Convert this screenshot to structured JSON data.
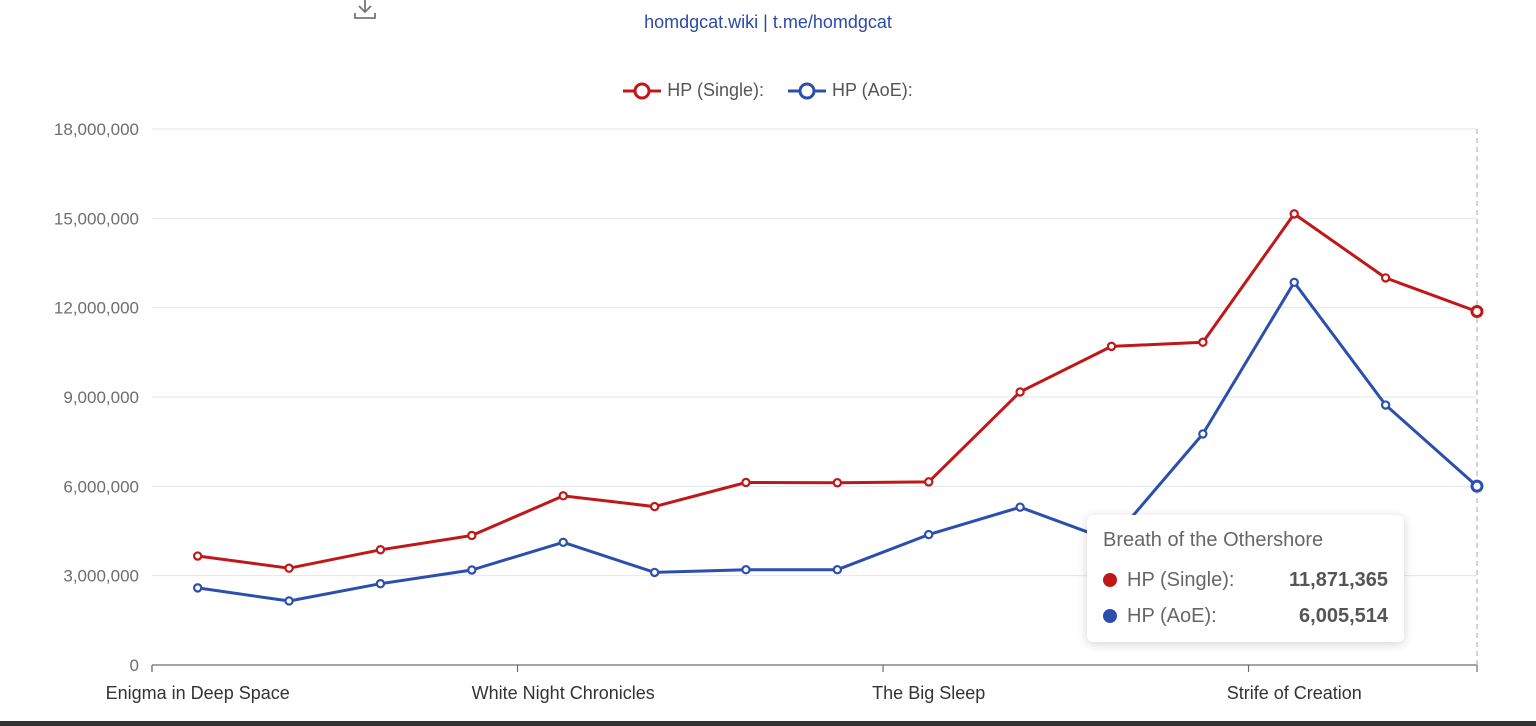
{
  "header": {
    "subtitle": "homdgcat.wiki | t.me/homdgcat",
    "download_icon": "download-icon"
  },
  "chart_data": {
    "type": "line",
    "categories": [
      "Enigma in Deep Space",
      "",
      "",
      "",
      "White Night Chronicles",
      "",
      "",
      "",
      "The Big Sleep",
      "",
      "",
      "",
      "Strife of Creation",
      "",
      ""
    ],
    "series": [
      {
        "name": "HP (Single):",
        "color": "#c01818",
        "values": [
          3660000,
          3250000,
          3870000,
          4350000,
          5680000,
          5320000,
          6130000,
          6120000,
          6150000,
          9170000,
          10700000,
          10840000,
          15150000,
          13000000,
          11871365
        ]
      },
      {
        "name": "HP (AoE):",
        "color": "#2c4fae",
        "values": [
          2590000,
          2150000,
          2730000,
          3190000,
          4120000,
          3110000,
          3200000,
          3200000,
          4380000,
          5300000,
          4170000,
          7760000,
          12850000,
          8730000,
          6005514
        ]
      }
    ],
    "ylim": [
      0,
      18000000
    ],
    "yticks": [
      "0",
      "3,000,000",
      "6,000,000",
      "9,000,000",
      "12,000,000",
      "15,000,000",
      "18,000,000"
    ],
    "grid": true,
    "legend_position": "top-center"
  },
  "tooltip": {
    "title": "Breath of the Othershore",
    "rows": [
      {
        "name": "HP (Single):",
        "value": "11,871,365",
        "color": "#c01818"
      },
      {
        "name": "HP (AoE):",
        "value": "6,005,514",
        "color": "#2c4fae"
      }
    ]
  }
}
